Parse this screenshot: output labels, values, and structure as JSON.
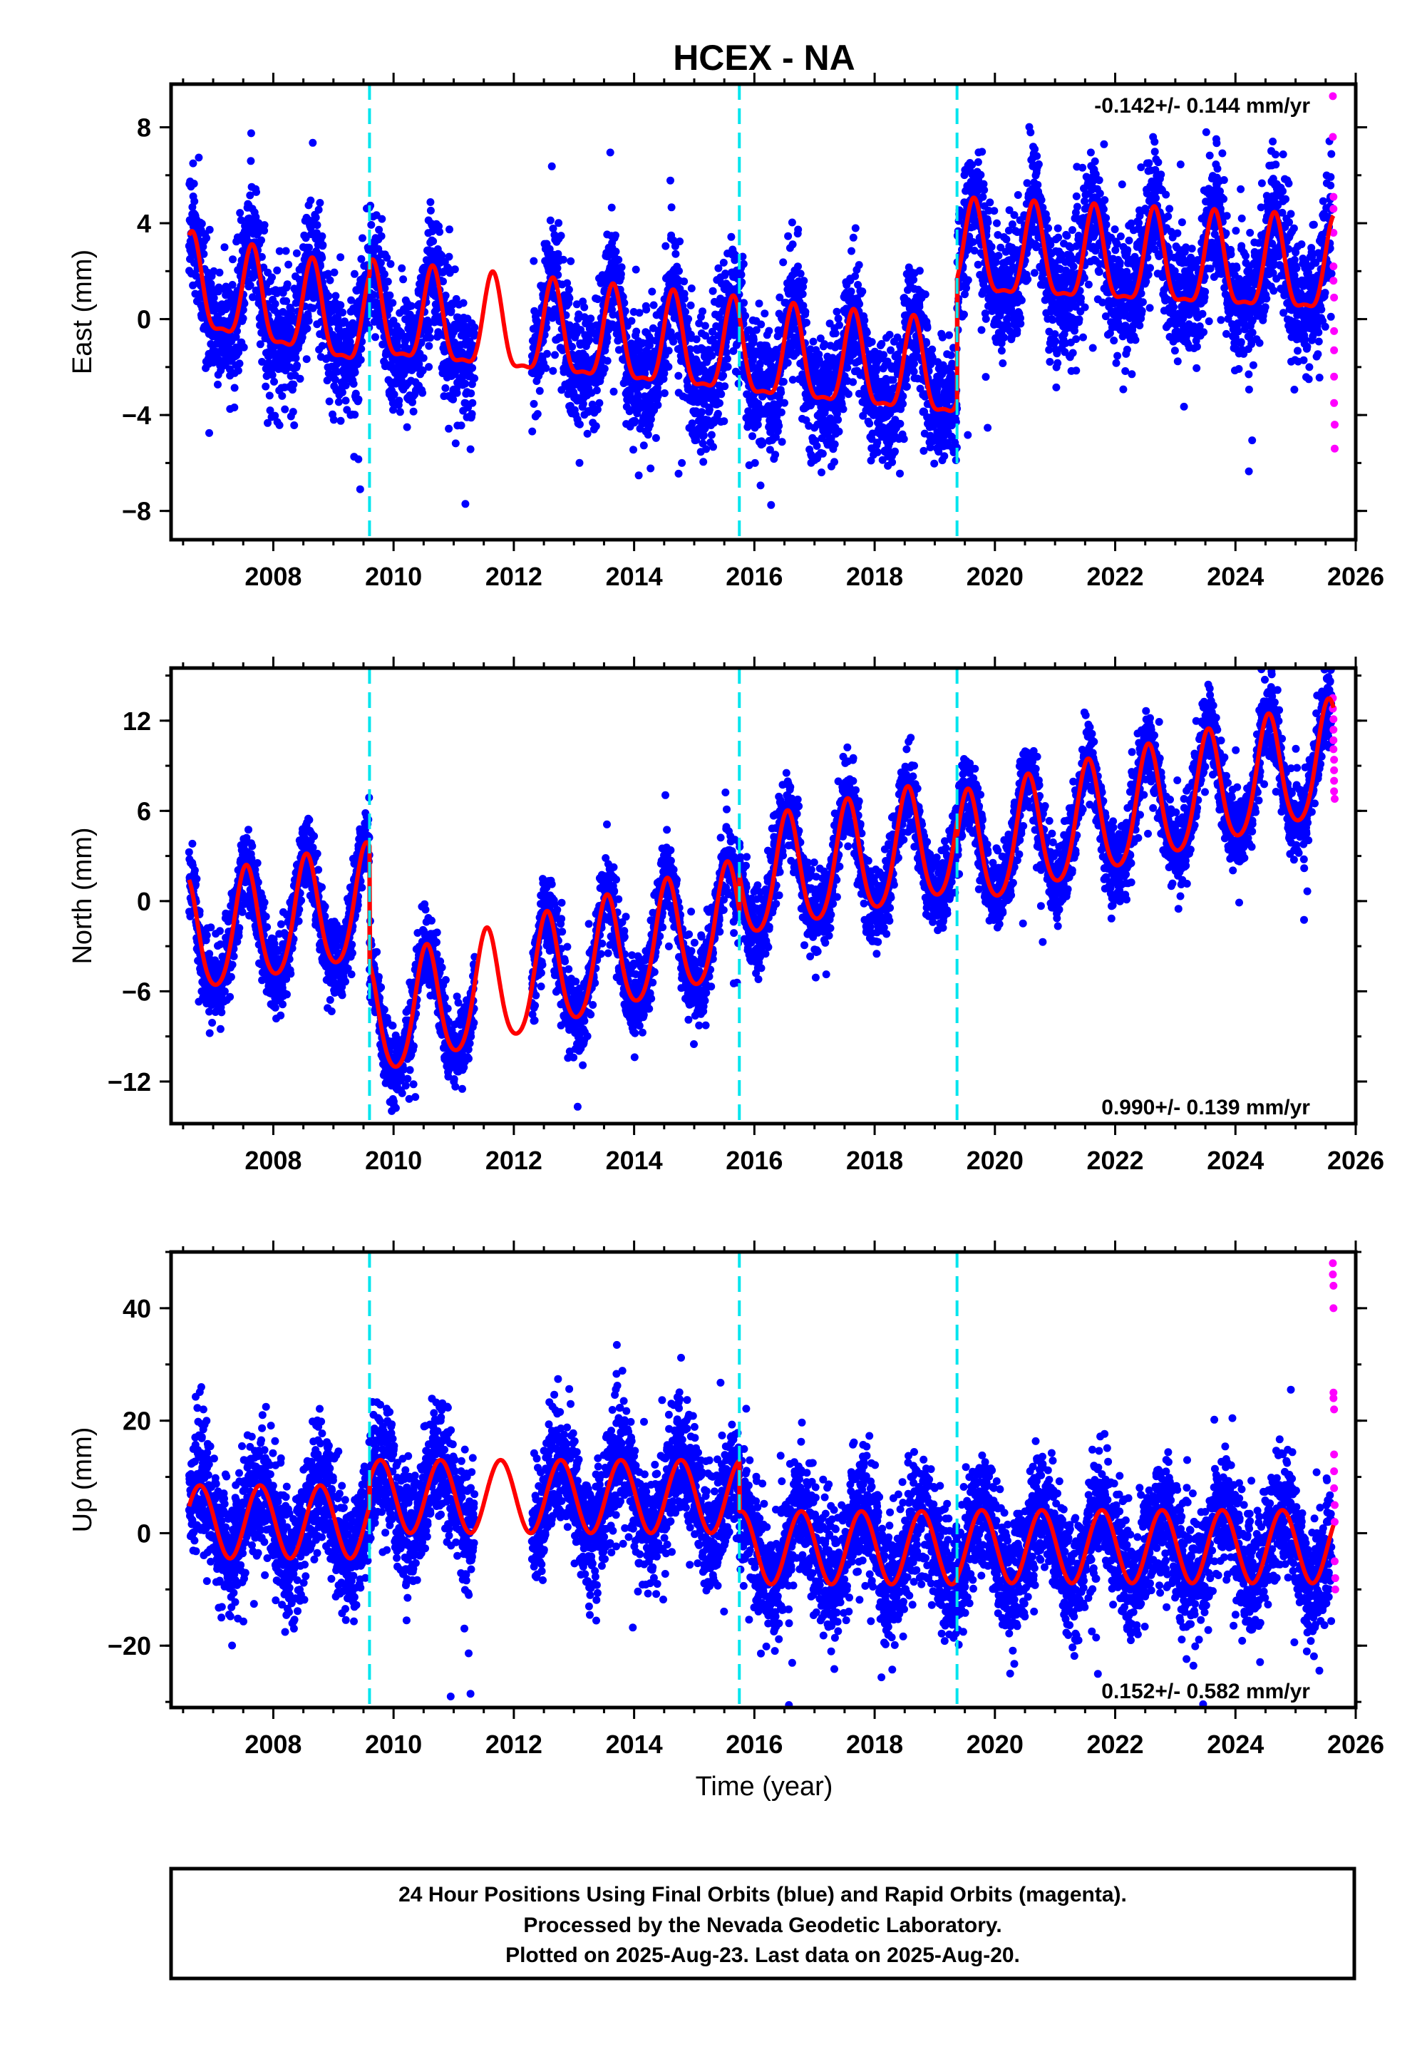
{
  "figure": {
    "title": "HCEX - NA",
    "xlabel": "Time (year)",
    "footer_lines": [
      "24 Hour Positions Using Final Orbits (blue) and Rapid Orbits (magenta).",
      "Processed by the Nevada Geodetic Laboratory.",
      "Plotted on 2025-Aug-23. Last data on 2025-Aug-20."
    ],
    "colors": {
      "final_orbits": "#0000ff",
      "rapid_orbits": "#ff00ff",
      "model_fit": "#ff0000",
      "equipment_change": "#00e5ee"
    }
  },
  "chart_data": [
    {
      "type": "scatter",
      "component": "east",
      "ylabel": "East (mm)",
      "rate_text": "-0.142+/- 0.144 mm/yr",
      "xlim": [
        2006.3,
        2026.0
      ],
      "ylim": [
        -9.2,
        9.8
      ],
      "xticks": [
        2008,
        2010,
        2012,
        2014,
        2016,
        2018,
        2020,
        2022,
        2024,
        2026
      ],
      "yticks": [
        -8,
        -4,
        0,
        4,
        8
      ],
      "ytick_labels": [
        "−8",
        "−4",
        "0",
        "4",
        "8"
      ],
      "vlines": [
        2009.6,
        2015.75,
        2019.37
      ],
      "model": {
        "segments": [
          {
            "x0": 2006.6,
            "x1": 2009.6,
            "offset": 1.2,
            "slope": -0.55
          },
          {
            "x0": 2009.6,
            "x1": 2015.75,
            "offset": 0.0,
            "slope": -0.25
          },
          {
            "x0": 2015.75,
            "x1": 2019.37,
            "offset": -1.6,
            "slope": -0.25
          },
          {
            "x0": 2019.37,
            "x1": 2025.63,
            "offset": 2.6,
            "slope": -0.12
          }
        ],
        "annual_amplitude": 1.9,
        "annual_phase": 0.65,
        "semiannual_amplitude": 0.6,
        "scatter_sigma": 1.3
      },
      "rapid_points": [
        [
          2025.62,
          9.3
        ],
        [
          2025.62,
          7.6
        ],
        [
          2025.63,
          5.1
        ],
        [
          2025.63,
          4.6
        ],
        [
          2025.63,
          3.6
        ],
        [
          2025.63,
          2.2
        ],
        [
          2025.63,
          1.6
        ],
        [
          2025.64,
          0.9
        ],
        [
          2025.64,
          -0.5
        ],
        [
          2025.64,
          -1.3
        ],
        [
          2025.64,
          -2.4
        ],
        [
          2025.64,
          -3.5
        ],
        [
          2025.65,
          -4.4
        ],
        [
          2025.65,
          -5.4
        ]
      ]
    },
    {
      "type": "scatter",
      "component": "north",
      "ylabel": "North (mm)",
      "rate_text": "0.990+/- 0.139 mm/yr",
      "xlim": [
        2006.3,
        2026.0
      ],
      "ylim": [
        -14.8,
        15.5
      ],
      "xticks": [
        2008,
        2010,
        2012,
        2014,
        2016,
        2018,
        2020,
        2022,
        2024,
        2026
      ],
      "yticks": [
        -12,
        -6,
        0,
        6,
        12
      ],
      "ytick_labels": [
        "−12",
        "−6",
        "0",
        "6",
        "12"
      ],
      "vlines": [
        2009.6,
        2015.75,
        2019.37
      ],
      "model": {
        "segments": [
          {
            "x0": 2006.6,
            "x1": 2009.6,
            "offset": -2.6,
            "slope": 0.75
          },
          {
            "x0": 2009.6,
            "x1": 2015.75,
            "offset": -8.2,
            "slope": 1.1
          },
          {
            "x0": 2015.75,
            "x1": 2019.37,
            "offset": 1.1,
            "slope": 0.8
          },
          {
            "x0": 2019.37,
            "x1": 2025.63,
            "offset": 3.0,
            "slope": 1.0
          }
        ],
        "annual_amplitude": 3.8,
        "annual_phase": 0.55,
        "semiannual_amplitude": 0.5,
        "scatter_sigma": 1.3
      },
      "rapid_points": [
        [
          2025.62,
          13.5
        ],
        [
          2025.62,
          12.8
        ],
        [
          2025.63,
          12.1
        ],
        [
          2025.63,
          11.4
        ],
        [
          2025.63,
          10.7
        ],
        [
          2025.63,
          10.1
        ],
        [
          2025.64,
          9.4
        ],
        [
          2025.64,
          8.7
        ],
        [
          2025.64,
          8.0
        ],
        [
          2025.64,
          7.3
        ],
        [
          2025.65,
          6.8
        ]
      ]
    },
    {
      "type": "scatter",
      "component": "up",
      "ylabel": "Up (mm)",
      "rate_text": "0.152+/- 0.582 mm/yr",
      "xlim": [
        2006.3,
        2026.0
      ],
      "ylim": [
        -31,
        50
      ],
      "xticks": [
        2008,
        2010,
        2012,
        2014,
        2016,
        2018,
        2020,
        2022,
        2024,
        2026
      ],
      "yticks": [
        -20,
        0,
        20,
        40
      ],
      "ytick_labels": [
        "−20",
        "0",
        "20",
        "40"
      ],
      "vlines": [
        2009.6,
        2015.75,
        2019.37
      ],
      "model": {
        "segments": [
          {
            "x0": 2006.6,
            "x1": 2009.6,
            "offset": 2.0,
            "slope": 0.0
          },
          {
            "x0": 2009.6,
            "x1": 2015.75,
            "offset": 6.5,
            "slope": 0.0
          },
          {
            "x0": 2015.75,
            "x1": 2019.37,
            "offset": -2.6,
            "slope": 0.0
          },
          {
            "x0": 2019.37,
            "x1": 2025.63,
            "offset": -2.4,
            "slope": 0.0
          }
        ],
        "annual_amplitude": 6.5,
        "annual_phase": 0.78,
        "semiannual_amplitude": 0.0,
        "scatter_sigma": 5.5
      },
      "rapid_points": [
        [
          2025.62,
          48.0
        ],
        [
          2025.62,
          46.0
        ],
        [
          2025.63,
          44.0
        ],
        [
          2025.63,
          40.0
        ],
        [
          2025.63,
          25.0
        ],
        [
          2025.63,
          24.0
        ],
        [
          2025.64,
          22.0
        ],
        [
          2025.64,
          14.0
        ],
        [
          2025.64,
          11.0
        ],
        [
          2025.64,
          8.0
        ],
        [
          2025.65,
          5.0
        ],
        [
          2025.65,
          2.0
        ],
        [
          2025.65,
          -5.0
        ],
        [
          2025.66,
          -8.0
        ],
        [
          2025.66,
          -10.0
        ]
      ]
    }
  ]
}
